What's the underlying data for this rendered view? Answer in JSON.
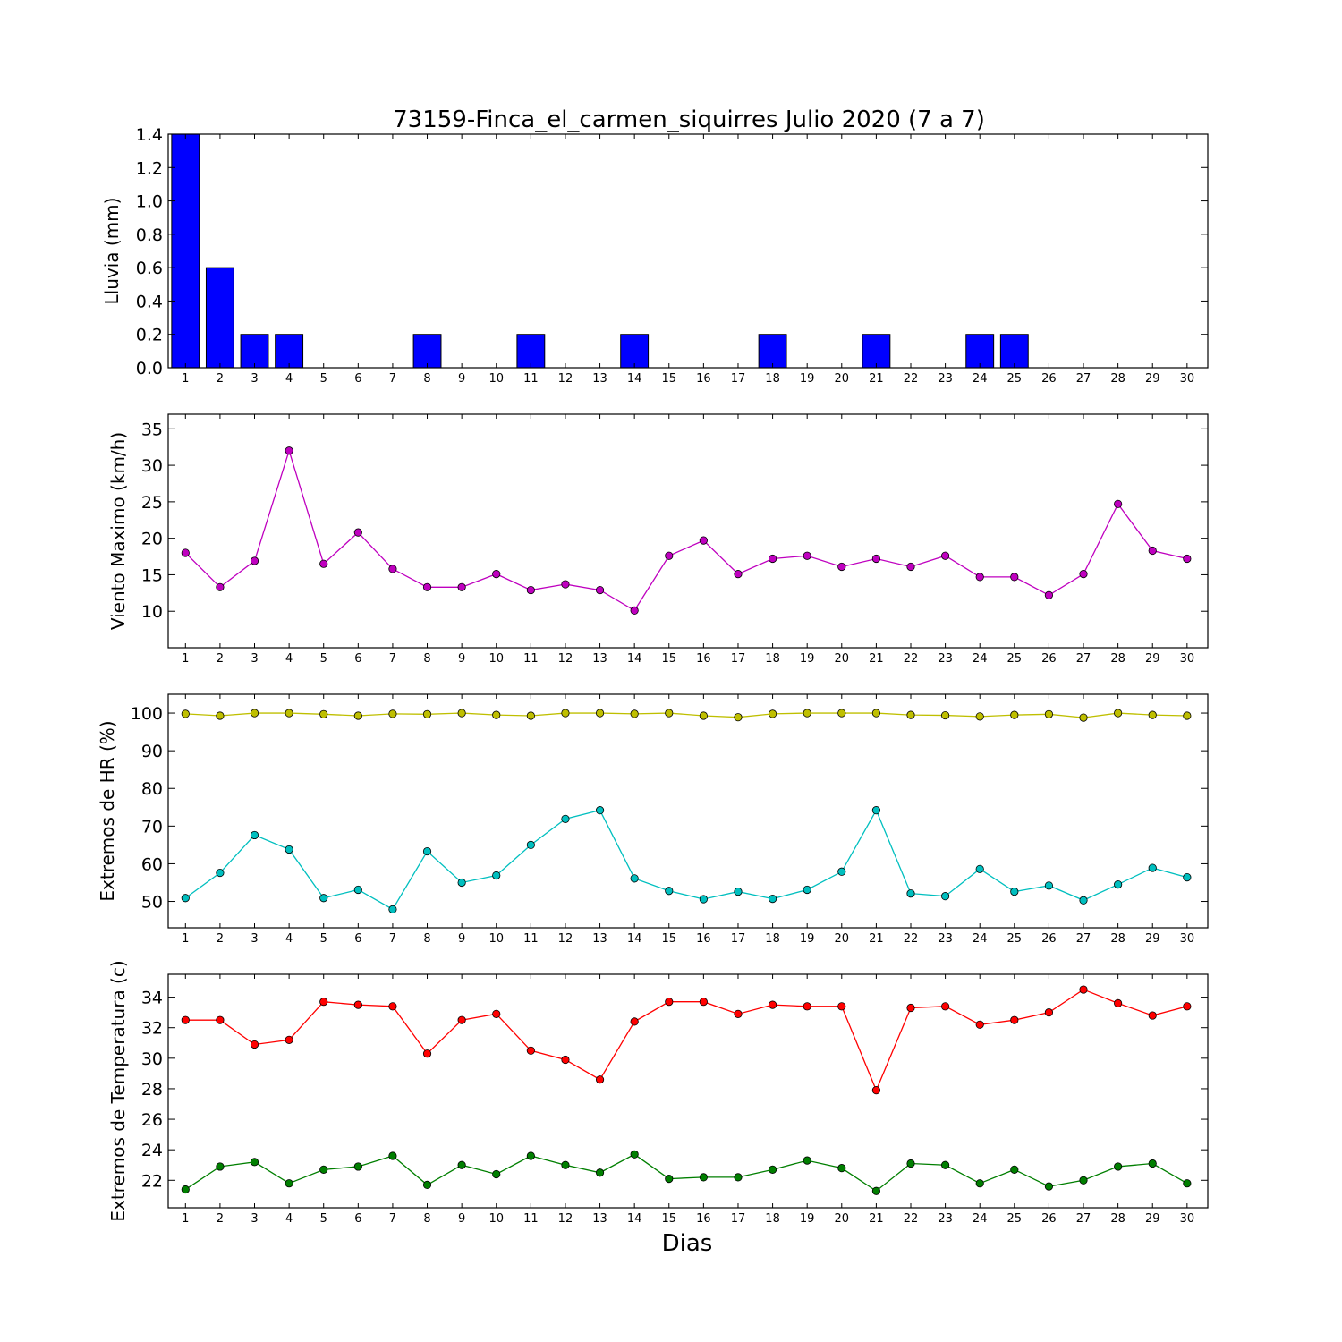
{
  "chart_data": {
    "title": "73159-Finca_el_carmen_siquirres Julio 2020  (7 a 7)",
    "xlabel": "Dias",
    "x": [
      1,
      2,
      3,
      4,
      5,
      6,
      7,
      8,
      9,
      10,
      11,
      12,
      13,
      14,
      15,
      16,
      17,
      18,
      19,
      20,
      21,
      22,
      23,
      24,
      25,
      26,
      27,
      28,
      29,
      30
    ],
    "panels": [
      {
        "type": "bar",
        "ylabel": "Lluvia (mm)",
        "ylim": [
          0,
          1.4
        ],
        "yticks": [
          "0.0",
          "0.2",
          "0.4",
          "0.6",
          "0.8",
          "1.0",
          "1.2",
          "1.4"
        ],
        "series": [
          {
            "color": "#0000ff",
            "values": [
              1.4,
              0.6,
              0.2,
              0.2,
              0,
              0,
              0,
              0.2,
              0,
              0,
              0.2,
              0,
              0,
              0.2,
              0,
              0,
              0,
              0.2,
              0,
              0,
              0.2,
              0,
              0,
              0.2,
              0.2,
              0,
              0,
              0,
              0,
              0
            ]
          }
        ]
      },
      {
        "type": "line",
        "ylabel": "Viento Maximo (km/h)",
        "ylim": [
          5,
          37
        ],
        "yticks": [
          "10",
          "15",
          "20",
          "25",
          "30",
          "35"
        ],
        "series": [
          {
            "color": "#bf00bf",
            "values": [
              18,
              13.3,
              16.9,
              32,
              16.5,
              20.8,
              15.8,
              13.3,
              13.3,
              15.1,
              12.9,
              13.7,
              12.9,
              10.1,
              17.6,
              19.7,
              15.1,
              17.2,
              17.6,
              16.1,
              17.2,
              16.1,
              17.6,
              14.7,
              14.7,
              12.2,
              15.1,
              24.7,
              18.3,
              17.2
            ]
          }
        ]
      },
      {
        "type": "line",
        "ylabel": "Extremos de HR (%)",
        "ylim": [
          43,
          105
        ],
        "yticks": [
          "50",
          "60",
          "70",
          "80",
          "90",
          "100"
        ],
        "series": [
          {
            "color": "#bfbf00",
            "values": [
              99.8,
              99.3,
              100,
              100,
              99.7,
              99.3,
              99.8,
              99.7,
              100,
              99.5,
              99.3,
              100,
              100,
              99.8,
              100,
              99.3,
              98.9,
              99.8,
              100,
              100,
              100,
              99.5,
              99.4,
              99.1,
              99.5,
              99.7,
              98.8,
              100,
              99.5,
              99.3
            ]
          },
          {
            "color": "#00bfbf",
            "values": [
              50.9,
              57.6,
              67.6,
              63.8,
              50.9,
              53.1,
              47.9,
              63.3,
              55,
              56.9,
              65,
              71.9,
              74.2,
              56.1,
              52.8,
              50.6,
              52.6,
              50.7,
              53.1,
              57.9,
              74.2,
              52.1,
              51.4,
              58.6,
              52.6,
              54.2,
              50.3,
              54.5,
              58.9,
              56.4
            ]
          }
        ]
      },
      {
        "type": "line",
        "ylabel": "Extremos de Temperatura (c)",
        "ylim": [
          20.2,
          35.5
        ],
        "yticks": [
          "22",
          "24",
          "26",
          "28",
          "30",
          "32",
          "34"
        ],
        "series": [
          {
            "color": "#ff0000",
            "values": [
              32.5,
              32.5,
              30.9,
              31.2,
              33.7,
              33.5,
              33.4,
              30.3,
              32.5,
              32.9,
              30.5,
              29.9,
              28.6,
              32.4,
              33.7,
              33.7,
              32.9,
              33.5,
              33.4,
              33.4,
              27.9,
              33.3,
              33.4,
              32.2,
              32.5,
              33,
              34.5,
              33.6,
              32.8,
              33.4
            ]
          },
          {
            "color": "#007f00",
            "values": [
              21.4,
              22.9,
              23.2,
              21.8,
              22.7,
              22.9,
              23.6,
              21.7,
              23,
              22.4,
              23.6,
              23,
              22.5,
              23.7,
              22.1,
              22.2,
              22.2,
              22.7,
              23.3,
              22.8,
              21.3,
              23.1,
              23,
              21.8,
              22.7,
              21.6,
              22,
              22.9,
              23.1,
              21.8
            ]
          }
        ]
      }
    ]
  }
}
